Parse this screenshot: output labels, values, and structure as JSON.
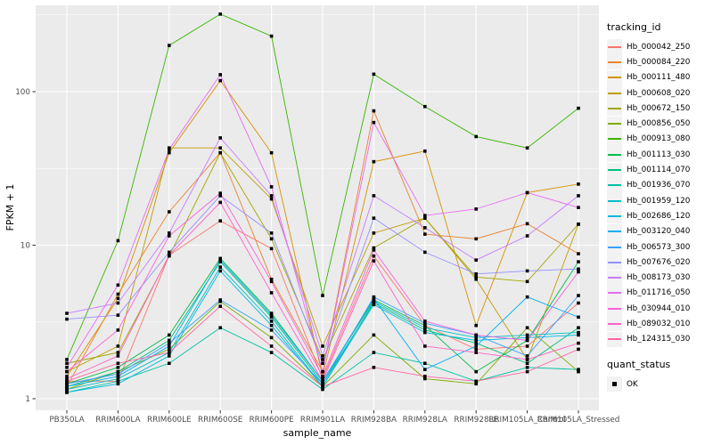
{
  "chart_data": {
    "type": "line",
    "title": "",
    "xlabel": "sample_name",
    "ylabel": "FPKM + 1",
    "y_scale": "log10",
    "ylim": [
      1,
      400
    ],
    "y_ticks": [
      1,
      10,
      100
    ],
    "grid": true,
    "legend_position": "right",
    "panel_bg": "#ebebeb",
    "grid_color": "#ffffff",
    "point_shape": "filled-square",
    "point_color": "#000000",
    "categories": [
      "PB350LA",
      "RRIM600LA",
      "RRIM600LE",
      "RRIM600SE",
      "RRIM600PE",
      "RRIM901LA",
      "RRIM928BA",
      "RRIM928LA",
      "RRIM928LE",
      "RRIM105LA_Control",
      "RRIM105LA_Stressed"
    ],
    "series": [
      {
        "name": "Hb_000042_250",
        "color": "#F8766D",
        "values": [
          1.3,
          1.3,
          8.6,
          14.4,
          9.5,
          1.35,
          8.5,
          3.0,
          2.1,
          2.2,
          4.2
        ]
      },
      {
        "name": "Hb_000084_220",
        "color": "#EA8331",
        "values": [
          1.2,
          4.8,
          16.5,
          40,
          6.0,
          1.5,
          75,
          11.8,
          11.0,
          13.8,
          8.8
        ]
      },
      {
        "name": "Hb_000111_480",
        "color": "#D89000",
        "values": [
          1.4,
          4.5,
          40,
          118,
          40,
          1.4,
          35,
          41,
          3.0,
          22,
          25
        ]
      },
      {
        "name": "Hb_000608_020",
        "color": "#C09B00",
        "values": [
          1.5,
          2.2,
          43,
          43,
          20,
          2.2,
          12,
          15,
          6.0,
          1.8,
          13.7
        ]
      },
      {
        "name": "Hb_000672_150",
        "color": "#A3A500",
        "values": [
          1.7,
          2.0,
          8.5,
          40,
          11,
          1.8,
          9.6,
          15,
          6.2,
          5.8,
          13.7
        ]
      },
      {
        "name": "Hb_000856_050",
        "color": "#7CAE00",
        "values": [
          1.15,
          1.5,
          2.1,
          4.3,
          2.5,
          1.2,
          2.6,
          1.35,
          1.25,
          2.9,
          1.5
        ]
      },
      {
        "name": "Hb_000913_080",
        "color": "#39B600",
        "values": [
          1.8,
          10.7,
          200,
          320,
          230,
          4.7,
          130,
          80,
          51,
          43,
          78
        ]
      },
      {
        "name": "Hb_001113_030",
        "color": "#00BB4E",
        "values": [
          1.25,
          1.6,
          2.6,
          8.2,
          3.6,
          1.3,
          4.4,
          3.0,
          1.5,
          2.4,
          7.8
        ]
      },
      {
        "name": "Hb_001114_070",
        "color": "#00BF7D",
        "values": [
          1.2,
          1.5,
          2.4,
          7.8,
          3.4,
          1.25,
          4.2,
          2.8,
          2.3,
          1.7,
          2.9
        ]
      },
      {
        "name": "Hb_001936_070",
        "color": "#00C1A3",
        "values": [
          1.1,
          1.3,
          1.7,
          2.9,
          2.0,
          1.15,
          2.0,
          1.7,
          1.3,
          1.6,
          1.55
        ]
      },
      {
        "name": "Hb_001959_120",
        "color": "#00BFC4",
        "values": [
          1.15,
          1.35,
          2.0,
          7.2,
          3.2,
          1.2,
          4.3,
          2.9,
          2.5,
          2.6,
          2.7
        ]
      },
      {
        "name": "Hb_002686_120",
        "color": "#00BAE0",
        "values": [
          1.1,
          1.25,
          1.9,
          6.8,
          3.0,
          1.2,
          4.1,
          2.7,
          2.4,
          2.5,
          2.6
        ]
      },
      {
        "name": "Hb_003120_040",
        "color": "#00B0F6",
        "values": [
          1.2,
          1.4,
          2.2,
          8.0,
          3.5,
          1.3,
          4.5,
          1.55,
          2.2,
          4.6,
          3.4
        ]
      },
      {
        "name": "Hb_006573_300",
        "color": "#35A2FF",
        "values": [
          1.25,
          1.45,
          2.3,
          4.4,
          2.8,
          1.25,
          4.6,
          3.1,
          2.6,
          1.9,
          4.7
        ]
      },
      {
        "name": "Hb_007676_020",
        "color": "#9590FF",
        "values": [
          3.3,
          3.5,
          9.0,
          21,
          12,
          1.7,
          15,
          9.0,
          6.5,
          6.8,
          7.0
        ]
      },
      {
        "name": "Hb_008173_030",
        "color": "#C77CFF",
        "values": [
          3.6,
          4.2,
          12,
          50,
          21,
          1.9,
          21,
          13,
          8.0,
          11.5,
          21
        ]
      },
      {
        "name": "Hb_011716_050",
        "color": "#E76BF3",
        "values": [
          1.6,
          5.5,
          42,
          129,
          24,
          1.5,
          63,
          15.6,
          17.2,
          22,
          17.6
        ]
      },
      {
        "name": "Hb_030944_010",
        "color": "#FA62DB",
        "values": [
          1.5,
          2.8,
          11.5,
          21.8,
          5.8,
          1.4,
          9.3,
          3.2,
          2.6,
          2.4,
          6.7
        ]
      },
      {
        "name": "Hb_089032_010",
        "color": "#FF61C9",
        "values": [
          1.35,
          1.9,
          8.6,
          19,
          4.9,
          1.3,
          7.9,
          2.2,
          2.0,
          1.8,
          2.3
        ]
      },
      {
        "name": "Hb_124315_030",
        "color": "#FF67A4",
        "values": [
          1.3,
          1.7,
          2.0,
          4.0,
          2.2,
          1.2,
          1.6,
          1.4,
          1.3,
          1.5,
          2.1
        ]
      }
    ],
    "legend": {
      "tracking_title": "tracking_id",
      "quant_title": "quant_status",
      "quant_value": "OK"
    }
  }
}
